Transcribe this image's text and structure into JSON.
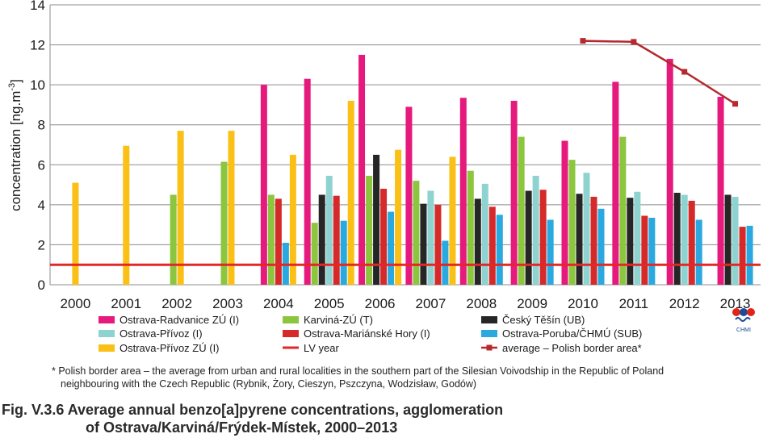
{
  "chart_data": {
    "type": "bar",
    "ylabel": "concentration [ng.m-3]",
    "ylabel_parts": {
      "base": "concentration [ng.m",
      "sup": "-3",
      "close": "]"
    },
    "ylim": [
      0,
      14
    ],
    "yticks": [
      "0",
      "2",
      "4",
      "6",
      "8",
      "10",
      "12",
      "14"
    ],
    "categories": [
      "2000",
      "2001",
      "2002",
      "2003",
      "2004",
      "2005",
      "2006",
      "2007",
      "2008",
      "2009",
      "2010",
      "2011",
      "2012",
      "2013"
    ],
    "grid": "horizontal",
    "legend_position": "bottom",
    "series": [
      {
        "name": "Ostrava-Radvanice ZÚ (I)",
        "color": "#e6197d",
        "values": [
          null,
          null,
          null,
          null,
          10.0,
          10.3,
          11.5,
          8.9,
          9.35,
          9.2,
          7.2,
          10.15,
          11.3,
          9.4
        ]
      },
      {
        "name": "Karviná-ZÚ (T)",
        "color": "#8cc63e",
        "values": [
          null,
          null,
          4.5,
          6.15,
          4.5,
          3.1,
          5.45,
          5.2,
          5.7,
          7.4,
          6.25,
          7.4,
          null,
          null
        ]
      },
      {
        "name": "Český Těšín (UB)",
        "color": "#262626",
        "values": [
          null,
          null,
          null,
          null,
          null,
          4.5,
          6.5,
          4.05,
          4.3,
          4.7,
          4.55,
          4.35,
          4.6,
          4.5
        ]
      },
      {
        "name": "Ostrava-Přívoz (I)",
        "color": "#8fd3d0",
        "values": [
          null,
          null,
          null,
          null,
          null,
          5.45,
          null,
          4.7,
          5.05,
          5.45,
          5.6,
          4.65,
          4.5,
          4.4
        ]
      },
      {
        "name": "Ostrava-Mariánské Hory (I)",
        "color": "#d42a2a",
        "values": [
          null,
          null,
          null,
          null,
          4.3,
          4.45,
          4.8,
          4.0,
          3.9,
          4.75,
          4.4,
          3.45,
          4.2,
          2.9
        ]
      },
      {
        "name": "Ostrava-Poruba/ČHMÚ (SUB)",
        "color": "#29a9e0",
        "values": [
          null,
          null,
          null,
          null,
          2.1,
          3.2,
          3.65,
          2.2,
          3.5,
          3.25,
          3.8,
          3.35,
          3.25,
          2.95
        ]
      },
      {
        "name": "Ostrava-Přívoz ZÚ (I)",
        "color": "#fbc016",
        "values": [
          5.1,
          6.95,
          7.7,
          7.7,
          6.5,
          9.2,
          6.75,
          6.4,
          null,
          null,
          null,
          null,
          null,
          null
        ]
      }
    ],
    "lv_line": {
      "name": "LV year",
      "value": 1,
      "color": "#e32626"
    },
    "average_line": {
      "name": "average  – Polish border area*",
      "color": "#b5292f",
      "points": [
        {
          "x": "2010",
          "y": 12.2
        },
        {
          "x": "2011",
          "y": 12.15
        },
        {
          "x": "2012",
          "y": 10.65
        },
        {
          "x": "2013",
          "y": 9.05
        }
      ]
    }
  },
  "logo": {
    "text": "CHMI"
  },
  "footnote": {
    "line1": "* Polish border area – the average from urban and rural localities in the southern part of the Silesian Voivodship in the Republic of Poland",
    "line2": "neighbouring with the Czech Republic (Rybnik, Żory, Cieszyn, Pszczyna, Wodzisław, Godów)"
  },
  "caption": {
    "line1": "Fig. V.3.6  Average annual benzo[a]pyrene concentrations, agglomeration",
    "line2": "of Ostrava/Karviná/Frýdek-Místek, 2000–2013"
  }
}
